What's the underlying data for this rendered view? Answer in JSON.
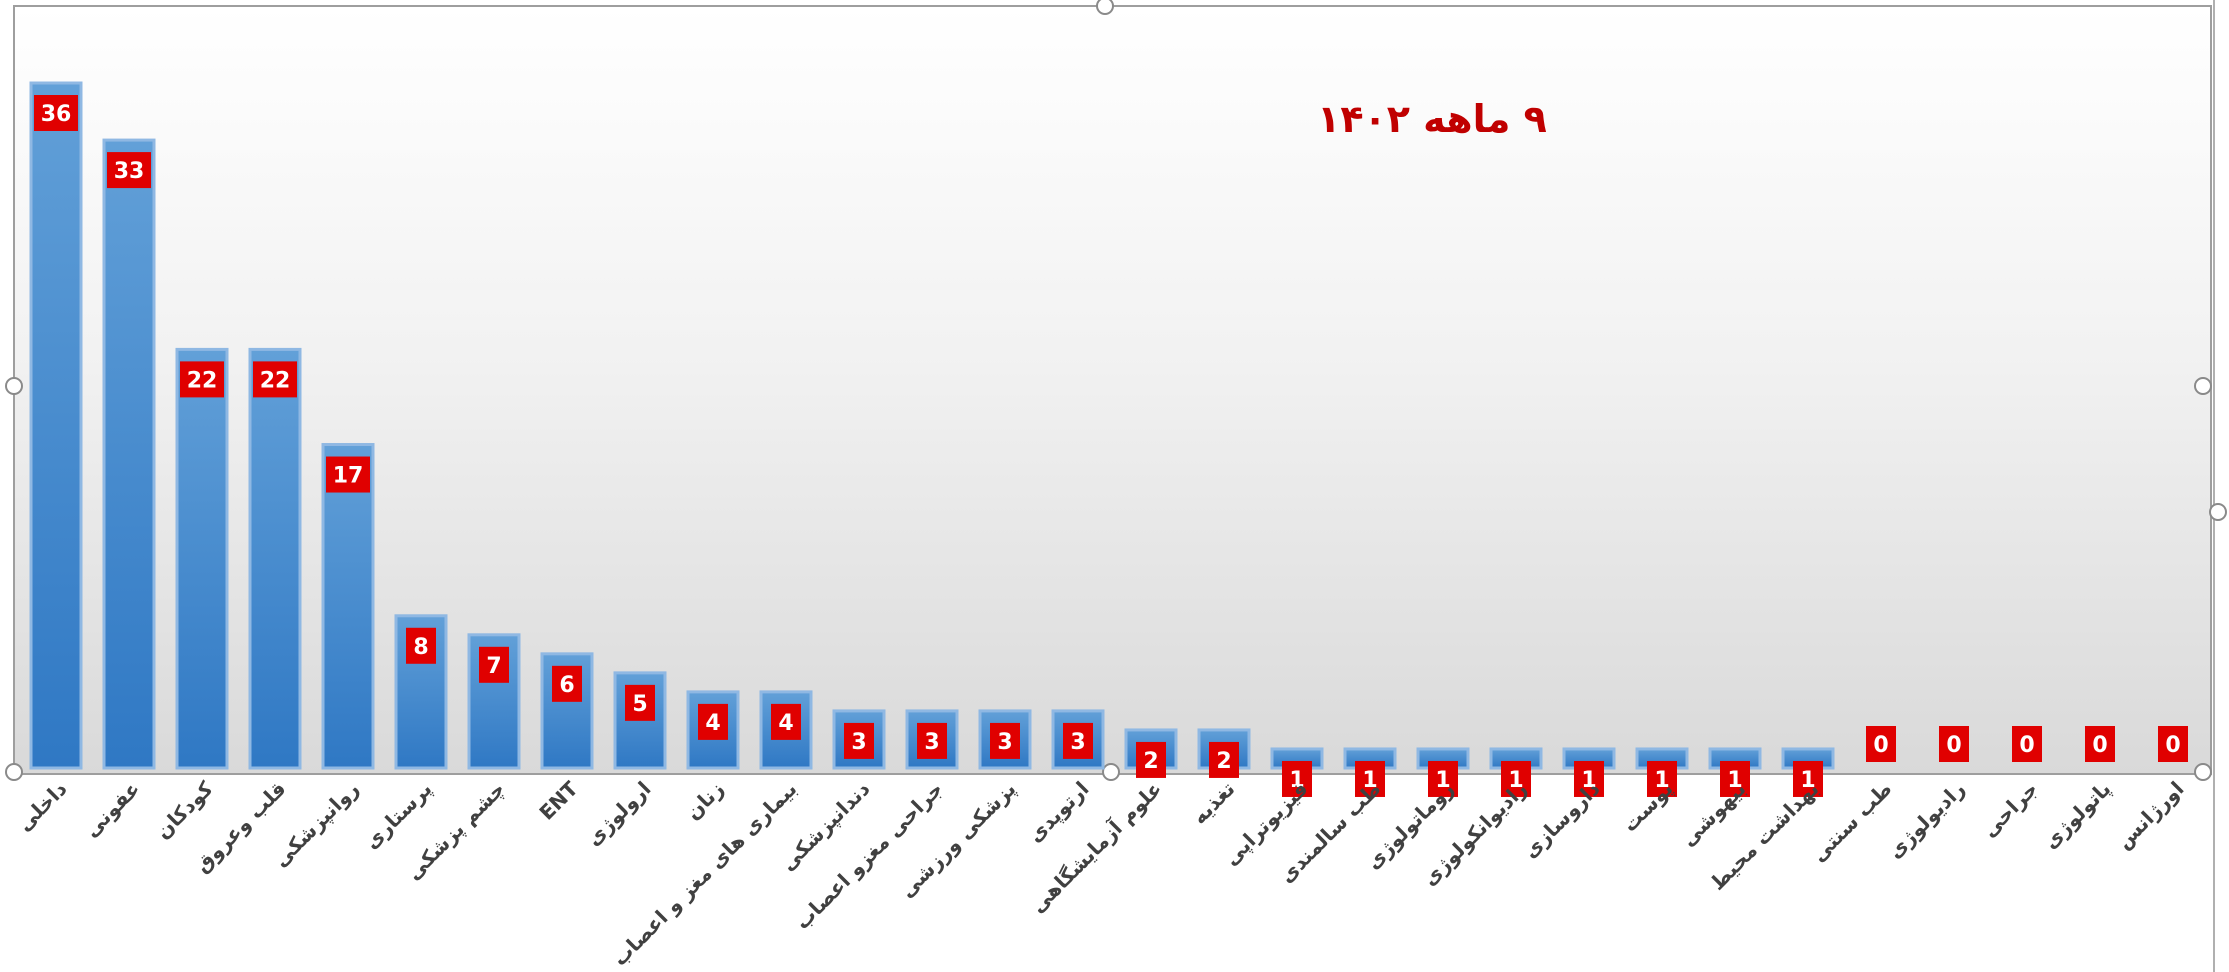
{
  "chart_data": {
    "type": "bar",
    "title": "۹ ماهه ۱۴۰۲",
    "xlabel": "",
    "ylabel": "",
    "ylim": [
      0,
      38
    ],
    "grid": false,
    "legend": "none",
    "categories": [
      "داخلی",
      "عفونی",
      "کودکان",
      "قلب وعروق",
      "روانپزشکی",
      "پرستاری",
      "چشم پزشکی",
      "ENT",
      "ارولوژی",
      "زنان",
      "بیماری های مغز و اعصاب",
      "دندانپزشکی",
      "جراحی مغزو اعصاب",
      "پزشکی ورزشی",
      "ارتوپدی",
      "علوم آزمایشگاهی",
      "تغذیه",
      "فیزیوتراپی",
      "طب سالمندی",
      "روماتولوژی",
      "رادیوانکولوژی",
      "داروسازی",
      "پوست",
      "بیهوشی",
      "بهداشت محیط",
      "طب سنتی",
      "رادیولوژی",
      "جراحی",
      "پاتولوژی",
      "اورژانس"
    ],
    "values": [
      36,
      33,
      22,
      22,
      17,
      8,
      7,
      6,
      5,
      4,
      4,
      3,
      3,
      3,
      3,
      2,
      2,
      1,
      1,
      1,
      1,
      1,
      1,
      1,
      1,
      0,
      0,
      0,
      0,
      0
    ],
    "colors": {
      "bar_top": "#5b9bd5",
      "bar_bottom": "#2e75b6",
      "label_bg": "#e00000",
      "label_text": "#ffffff",
      "title": "#c00000"
    }
  }
}
